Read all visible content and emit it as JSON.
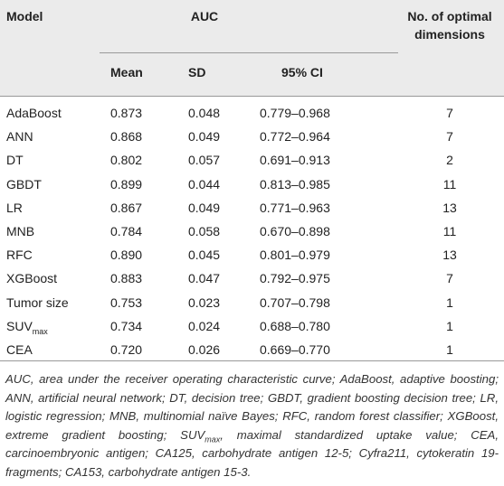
{
  "header": {
    "model": "Model",
    "auc": "AUC",
    "dimensions": [
      "No. of optimal",
      "dimensions"
    ],
    "mean": "Mean",
    "sd": "SD",
    "ci": "95% CI"
  },
  "table": {
    "rows": [
      [
        {
          "base": "AdaBoost"
        },
        "0.873",
        "0.048",
        "0.779–0.968",
        7
      ],
      [
        {
          "base": "ANN"
        },
        "0.868",
        "0.049",
        "0.772–0.964",
        7
      ],
      [
        {
          "base": "DT"
        },
        "0.802",
        "0.057",
        "0.691–0.913",
        2
      ],
      [
        {
          "base": "GBDT"
        },
        "0.899",
        "0.044",
        "0.813–0.985",
        11
      ],
      [
        {
          "base": "LR"
        },
        "0.867",
        "0.049",
        "0.771–0.963",
        13
      ],
      [
        {
          "base": "MNB"
        },
        "0.784",
        "0.058",
        "0.670–0.898",
        11
      ],
      [
        {
          "base": "RFC"
        },
        "0.890",
        "0.045",
        "0.801–0.979",
        13
      ],
      [
        {
          "base": "XGBoost"
        },
        "0.883",
        "0.047",
        "0.792–0.975",
        7
      ],
      [
        {
          "base": "Tumor size"
        },
        "0.753",
        "0.023",
        "0.707–0.798",
        1
      ],
      [
        {
          "base": "SUV",
          "sub": "max"
        },
        "0.734",
        "0.024",
        "0.688–0.780",
        1
      ],
      [
        {
          "base": "CEA"
        },
        "0.720",
        "0.026",
        "0.669–0.770",
        1
      ]
    ]
  },
  "footnote": [
    {
      "text": "AUC, area under the receiver operating characteristic curve; AdaBoost, adaptive boosting; ANN, artificial neural network; DT, decision tree; GBDT, gradient boosting decision tree; LR, logistic regression; MNB, multinomial naïve Bayes; RFC, random forest classifier; XGBoost, extreme gradient boosting; SUV"
    },
    {
      "sub": "max"
    },
    {
      "text": ", maximal standardized uptake value; CEA, carcinoembryonic antigen; CA125, carbohydrate antigen 12-5; Cyfra211, cytokeratin 19-fragments; CA153, carbohydrate antigen 15-3."
    }
  ]
}
